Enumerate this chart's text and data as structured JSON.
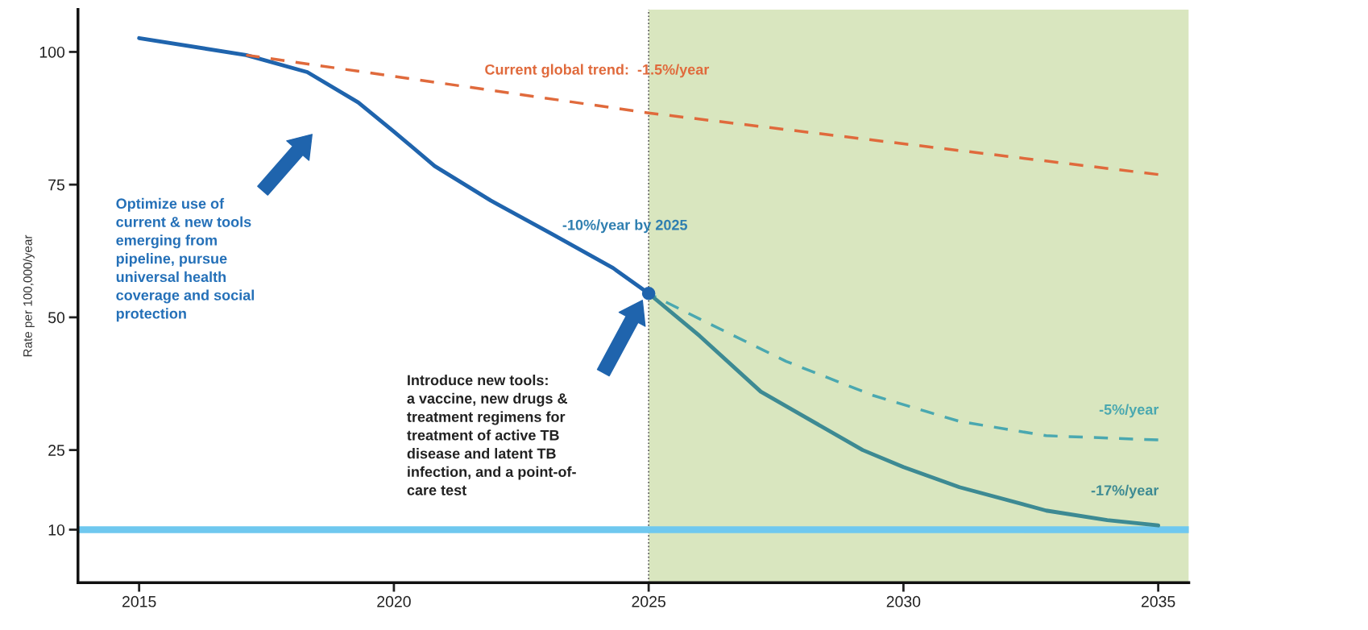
{
  "chart_data": {
    "type": "line",
    "ylabel": "Rate per 100,000/year",
    "xlim": [
      2013.8,
      2035.6
    ],
    "xticks": [
      2015,
      2020,
      2025,
      2030,
      2035
    ],
    "ylim": [
      0,
      108
    ],
    "yticks": [
      10,
      25,
      50,
      75,
      100
    ],
    "grid": false,
    "series": [
      {
        "color": "#1f64ad",
        "line_style": "solid",
        "x": [
          2015,
          2017.1,
          2018.3,
          2019.3,
          2020,
          2020.8,
          2021.9,
          2023.1,
          2024.3,
          2025
        ],
        "values": [
          102.6,
          99.4,
          96.2,
          90.5,
          85,
          78.5,
          72,
          65.7,
          59.3,
          54.5
        ]
      },
      {
        "color": "#e06a3c",
        "line_style": "dashed",
        "x": [
          2017.1,
          2025,
          2035
        ],
        "values": [
          99.4,
          88.5,
          76.9
        ]
      },
      {
        "color": "#4aa8b0",
        "line_style": "dashed",
        "x": [
          2025,
          2026,
          2027.7,
          2029.4,
          2031.1,
          2032.8,
          2035
        ],
        "values": [
          54.5,
          49.7,
          41.7,
          35.3,
          30.4,
          27.7,
          26.9
        ]
      },
      {
        "color": "#3d8a93",
        "line_style": "solid",
        "x": [
          2025,
          2026,
          2027.2,
          2029.2,
          2030,
          2031.1,
          2032.8,
          2034,
          2035
        ],
        "values": [
          54.5,
          46.5,
          36,
          25,
          21.8,
          18,
          13.6,
          11.8,
          10.8
        ]
      },
      {
        "type": "scatter",
        "marker": "circle",
        "color": "#1f64ad",
        "x": [
          2025
        ],
        "values": [
          54.5
        ]
      }
    ],
    "ref_lines": [
      {
        "axis": "y",
        "value": 10,
        "color": "#6fc8ef",
        "line_style": "solid"
      },
      {
        "axis": "x",
        "value": 2025,
        "color": "#555555",
        "line_style": "dotted"
      }
    ],
    "bands": [
      {
        "axis": "x",
        "from": 2025,
        "to": 2035.6,
        "color": "#d9e6bf"
      }
    ],
    "annotations": [
      "Current global trend:  -1.5%/year",
      "-10%/year by 2025",
      "-5%/year",
      "-17%/year",
      "Optimize use of\ncurrent & new tools\nemerging from\npipeline, pursue\nuniversal health\ncoverage and social\nprotection",
      "Introduce new tools:\na vaccine, new drugs &\ntreatment regimens for\ntreatment of active TB\ndisease and latent TB\ninfection, and a point-of-\ncare test"
    ]
  }
}
